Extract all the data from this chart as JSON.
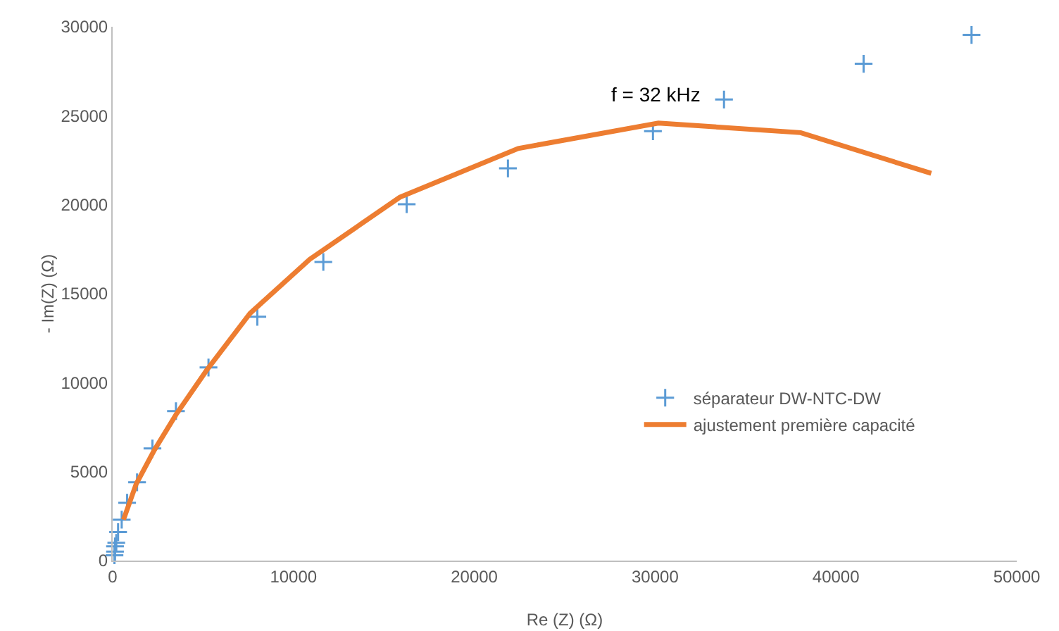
{
  "chart_data": {
    "type": "scatter",
    "xlabel": "Re (Z) (Ω)",
    "ylabel": "- Im(Z) (Ω)",
    "xlim": [
      0,
      50000
    ],
    "xticks": [
      0,
      10000,
      20000,
      30000,
      40000,
      50000
    ],
    "ylim": [
      0,
      30000
    ],
    "yticks": [
      0,
      5000,
      10000,
      15000,
      20000,
      25000,
      30000
    ],
    "grid": false,
    "legend": "right",
    "annotations": [
      "f = 32 kHz"
    ],
    "series": [
      {
        "name": "séparateur DW-NTC-DW",
        "marker": "cross",
        "color": "#5b9bd5",
        "x": [
          100,
          130,
          130,
          200,
          300,
          500,
          800,
          1350,
          2200,
          3500,
          5300,
          8000,
          11650,
          16260,
          21860,
          29880,
          33810,
          41530,
          47500
        ],
        "values": [
          300,
          500,
          800,
          1000,
          1600,
          2300,
          3250,
          4400,
          6300,
          8400,
          10850,
          13700,
          16780,
          20030,
          22040,
          24130,
          25910,
          27920,
          29540
        ]
      },
      {
        "name": "ajustement première capacité",
        "type": "line",
        "marker": "none",
        "line_style": "solid",
        "color": "#ed7d31",
        "x": [
          600,
          1300,
          2300,
          3500,
          5200,
          7600,
          10900,
          15880,
          22430,
          30180,
          38050,
          45270
        ],
        "values": [
          2300,
          4300,
          6200,
          8200,
          10700,
          13900,
          16930,
          20420,
          23160,
          24590,
          24050,
          21760
        ]
      }
    ]
  }
}
